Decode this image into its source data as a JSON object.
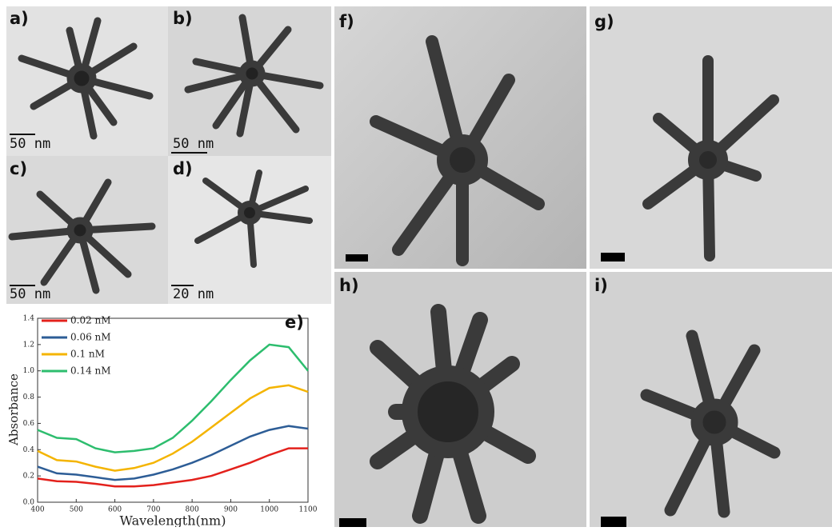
{
  "panels": [
    {
      "label": "a)",
      "scale_bar": "50 nm"
    },
    {
      "label": "b)",
      "scale_bar": "50 nm"
    },
    {
      "label": "c)",
      "scale_bar": "50 nm"
    },
    {
      "label": "d)",
      "scale_bar": "20 nm"
    },
    {
      "label": "f)"
    },
    {
      "label": "g)"
    },
    {
      "label": "h)"
    },
    {
      "label": "i)"
    }
  ],
  "chart_data": {
    "type": "line",
    "label": "e)",
    "x_label": "Wavelength(nm)",
    "y_label": "Absorbance",
    "x": [
      400,
      450,
      500,
      550,
      600,
      650,
      700,
      750,
      800,
      850,
      900,
      950,
      1000,
      1050,
      1100
    ],
    "series": [
      {
        "name": "0.02 nM",
        "color": "#e3211c",
        "values": [
          0.18,
          0.16,
          0.155,
          0.14,
          0.12,
          0.12,
          0.13,
          0.15,
          0.17,
          0.2,
          0.25,
          0.3,
          0.36,
          0.41,
          0.41
        ]
      },
      {
        "name": "0.06 nM",
        "color": "#2d5d96",
        "values": [
          0.27,
          0.22,
          0.21,
          0.19,
          0.17,
          0.18,
          0.21,
          0.25,
          0.3,
          0.36,
          0.43,
          0.5,
          0.55,
          0.58,
          0.56
        ]
      },
      {
        "name": "0.1 nM",
        "color": "#f4b400",
        "values": [
          0.39,
          0.32,
          0.31,
          0.27,
          0.24,
          0.26,
          0.3,
          0.37,
          0.46,
          0.57,
          0.68,
          0.79,
          0.87,
          0.89,
          0.84
        ]
      },
      {
        "name": "0.14 nM",
        "color": "#2dbd6e",
        "values": [
          0.55,
          0.49,
          0.48,
          0.41,
          0.38,
          0.39,
          0.41,
          0.49,
          0.62,
          0.77,
          0.93,
          1.08,
          1.2,
          1.18,
          1.0
        ]
      }
    ],
    "xlim": [
      400,
      1100
    ],
    "xticks": [
      400,
      500,
      600,
      700,
      800,
      900,
      1000,
      1100
    ],
    "ylim": [
      0,
      1.4
    ],
    "yticks": [
      {
        "value": 0,
        "label": "0.0"
      },
      0.2,
      0.4,
      0.6,
      0.8,
      {
        "value": 1,
        "label": "1.0"
      },
      1.2,
      1.4
    ],
    "legend": "upper-left"
  }
}
